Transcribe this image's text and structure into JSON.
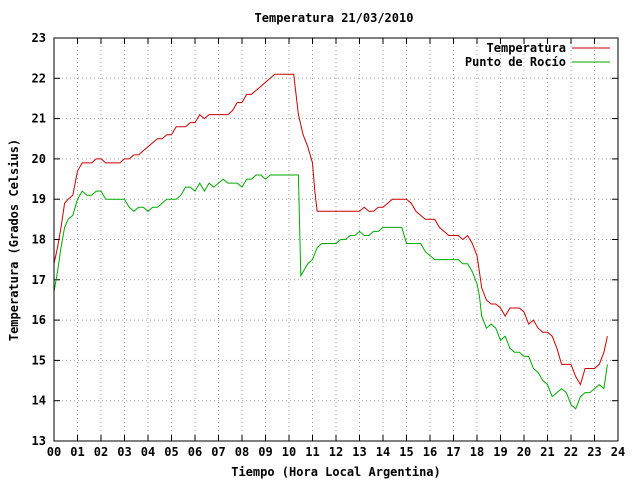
{
  "chart_data": {
    "type": "line",
    "title": "Temperatura 21/03/2010",
    "xlabel": "Tiempo (Hora Local Argentina)",
    "ylabel": "Temperatura (Grados Celsius)",
    "xlim": [
      0,
      24
    ],
    "ylim": [
      13,
      23
    ],
    "x_ticks": [
      "00",
      "01",
      "02",
      "03",
      "04",
      "05",
      "06",
      "07",
      "08",
      "09",
      "10",
      "11",
      "12",
      "13",
      "14",
      "15",
      "16",
      "17",
      "18",
      "19",
      "20",
      "21",
      "22",
      "23",
      "24"
    ],
    "y_ticks": [
      "13",
      "14",
      "15",
      "16",
      "17",
      "18",
      "19",
      "20",
      "21",
      "22",
      "23"
    ],
    "grid": true,
    "legend_position": "top-right",
    "series": [
      {
        "name": "Temperatura",
        "color": "#cc0000",
        "x": [
          0.0,
          0.15,
          0.3,
          0.45,
          0.6,
          0.8,
          1.0,
          1.2,
          1.4,
          1.6,
          1.8,
          2.0,
          2.2,
          2.4,
          2.6,
          2.8,
          3.0,
          3.2,
          3.4,
          3.6,
          3.8,
          4.0,
          4.2,
          4.4,
          4.6,
          4.8,
          5.0,
          5.2,
          5.4,
          5.6,
          5.8,
          6.0,
          6.2,
          6.4,
          6.6,
          6.8,
          7.0,
          7.2,
          7.4,
          7.6,
          7.8,
          8.0,
          8.2,
          8.4,
          8.6,
          8.8,
          9.0,
          9.2,
          9.4,
          9.6,
          9.8,
          10.0,
          10.2,
          10.4,
          10.6,
          10.8,
          11.0,
          11.1,
          11.2,
          11.5,
          12.0,
          12.5,
          13.0,
          13.2,
          13.4,
          13.6,
          13.8,
          14.0,
          14.2,
          14.4,
          14.6,
          14.8,
          15.0,
          15.2,
          15.4,
          15.6,
          15.8,
          16.0,
          16.2,
          16.4,
          16.6,
          16.8,
          17.0,
          17.2,
          17.4,
          17.6,
          17.8,
          18.0,
          18.1,
          18.2,
          18.4,
          18.6,
          18.8,
          19.0,
          19.2,
          19.4,
          19.6,
          19.8,
          20.0,
          20.2,
          20.4,
          20.6,
          20.8,
          21.0,
          21.2,
          21.4,
          21.6,
          21.8,
          22.0,
          22.2,
          22.4,
          22.6,
          22.8,
          23.0,
          23.2,
          23.4,
          23.55
        ],
        "y": [
          17.4,
          17.8,
          18.3,
          18.9,
          19.0,
          19.1,
          19.7,
          19.9,
          19.9,
          19.9,
          20.0,
          20.0,
          19.9,
          19.9,
          19.9,
          19.9,
          20.0,
          20.0,
          20.1,
          20.1,
          20.2,
          20.3,
          20.4,
          20.5,
          20.5,
          20.6,
          20.6,
          20.8,
          20.8,
          20.8,
          20.9,
          20.9,
          21.1,
          21.0,
          21.1,
          21.1,
          21.1,
          21.1,
          21.1,
          21.2,
          21.4,
          21.4,
          21.6,
          21.6,
          21.7,
          21.8,
          21.9,
          22.0,
          22.1,
          22.1,
          22.1,
          22.1,
          22.1,
          21.1,
          20.6,
          20.3,
          19.9,
          19.2,
          18.7,
          18.7,
          18.7,
          18.7,
          18.7,
          18.8,
          18.7,
          18.7,
          18.8,
          18.8,
          18.9,
          19.0,
          19.0,
          19.0,
          19.0,
          18.9,
          18.7,
          18.6,
          18.5,
          18.5,
          18.5,
          18.3,
          18.2,
          18.1,
          18.1,
          18.1,
          18.0,
          18.1,
          17.9,
          17.6,
          17.2,
          16.8,
          16.5,
          16.4,
          16.4,
          16.3,
          16.1,
          16.3,
          16.3,
          16.3,
          16.2,
          15.9,
          16.0,
          15.8,
          15.7,
          15.7,
          15.6,
          15.3,
          14.9,
          14.9,
          14.9,
          14.6,
          14.4,
          14.8,
          14.8,
          14.8,
          14.9,
          15.2,
          15.6
        ]
      },
      {
        "name": "Punto de Rocío",
        "color": "#00aa00",
        "x": [
          0.0,
          0.15,
          0.3,
          0.45,
          0.6,
          0.8,
          1.0,
          1.2,
          1.4,
          1.6,
          1.8,
          2.0,
          2.2,
          2.4,
          2.6,
          2.8,
          3.0,
          3.2,
          3.4,
          3.6,
          3.8,
          4.0,
          4.2,
          4.4,
          4.6,
          4.8,
          5.0,
          5.2,
          5.4,
          5.6,
          5.8,
          6.0,
          6.2,
          6.4,
          6.6,
          6.8,
          7.0,
          7.2,
          7.4,
          7.6,
          7.8,
          8.0,
          8.2,
          8.4,
          8.6,
          8.8,
          9.0,
          9.2,
          9.4,
          9.6,
          9.8,
          10.0,
          10.2,
          10.4,
          10.5,
          10.6,
          10.8,
          11.0,
          11.2,
          11.4,
          11.6,
          12.0,
          12.2,
          12.4,
          12.6,
          12.8,
          13.0,
          13.2,
          13.4,
          13.6,
          13.8,
          14.0,
          14.2,
          14.4,
          14.6,
          14.8,
          15.0,
          15.2,
          15.4,
          15.6,
          15.8,
          16.0,
          16.2,
          16.4,
          16.6,
          16.8,
          17.0,
          17.2,
          17.4,
          17.6,
          17.8,
          18.0,
          18.1,
          18.2,
          18.4,
          18.6,
          18.8,
          19.0,
          19.2,
          19.4,
          19.6,
          19.8,
          20.0,
          20.2,
          20.4,
          20.6,
          20.8,
          21.0,
          21.2,
          21.4,
          21.6,
          21.8,
          22.0,
          22.2,
          22.4,
          22.6,
          22.8,
          23.0,
          23.2,
          23.4,
          23.55
        ],
        "y": [
          16.7,
          17.2,
          17.8,
          18.3,
          18.5,
          18.6,
          19.0,
          19.2,
          19.1,
          19.1,
          19.2,
          19.2,
          19.0,
          19.0,
          19.0,
          19.0,
          19.0,
          18.8,
          18.7,
          18.8,
          18.8,
          18.7,
          18.8,
          18.8,
          18.9,
          19.0,
          19.0,
          19.0,
          19.1,
          19.3,
          19.3,
          19.2,
          19.4,
          19.2,
          19.4,
          19.3,
          19.4,
          19.5,
          19.4,
          19.4,
          19.4,
          19.3,
          19.5,
          19.5,
          19.6,
          19.6,
          19.5,
          19.6,
          19.6,
          19.6,
          19.6,
          19.6,
          19.6,
          19.6,
          17.1,
          17.2,
          17.4,
          17.5,
          17.8,
          17.9,
          17.9,
          17.9,
          18.0,
          18.0,
          18.1,
          18.1,
          18.2,
          18.1,
          18.1,
          18.2,
          18.2,
          18.3,
          18.3,
          18.3,
          18.3,
          18.3,
          17.9,
          17.9,
          17.9,
          17.9,
          17.7,
          17.6,
          17.5,
          17.5,
          17.5,
          17.5,
          17.5,
          17.5,
          17.4,
          17.4,
          17.2,
          16.9,
          16.6,
          16.1,
          15.8,
          15.9,
          15.8,
          15.5,
          15.6,
          15.3,
          15.2,
          15.2,
          15.1,
          15.1,
          14.8,
          14.7,
          14.5,
          14.4,
          14.1,
          14.2,
          14.3,
          14.2,
          13.9,
          13.8,
          14.1,
          14.2,
          14.2,
          14.3,
          14.4,
          14.3,
          14.9
        ]
      }
    ]
  }
}
